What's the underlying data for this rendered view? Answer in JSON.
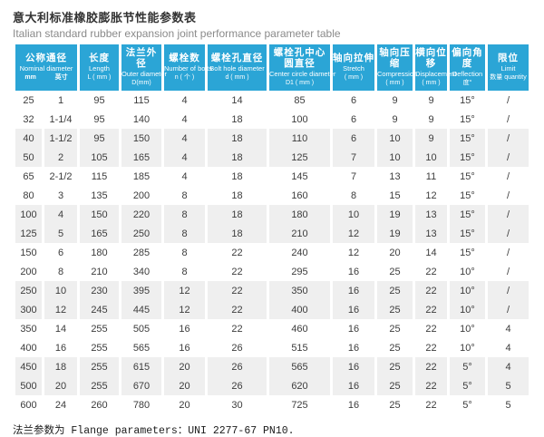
{
  "title_cn": "意大利标准橡胶膨胀节性能参数表",
  "title_en": "Italian standard rubber expansion joint performance parameter table",
  "colors": {
    "header_bg": "#2ba5d6",
    "stripe_bg": "#efefef",
    "header_text": "#ffffff"
  },
  "table": {
    "header": {
      "nominal": {
        "cn": "公称通径",
        "en": "Nominal diameter",
        "subs": [
          "mm",
          "英寸"
        ]
      },
      "columns": [
        {
          "cn": "长度",
          "en": "Length",
          "sub": "L ( mm )"
        },
        {
          "cn": "法兰外径",
          "en": "Outer diameter",
          "sub": "D(mm)"
        },
        {
          "cn": "螺栓数",
          "en": "Number of bolts",
          "sub": "n ( 个 )"
        },
        {
          "cn": "螺栓孔直径",
          "en": "Bolt hole diameter",
          "sub": "d ( mm )"
        },
        {
          "cn": "螺栓孔中心圆直径",
          "en": "Center circle diameter",
          "sub": "D1 ( mm )"
        },
        {
          "cn": "轴向拉伸",
          "en": "Stretch",
          "sub": "( mm )"
        },
        {
          "cn": "轴向压缩",
          "en": "Compression",
          "sub": "( mm )"
        },
        {
          "cn": "横向位移",
          "en": "Displacement",
          "sub": "( mm )"
        },
        {
          "cn": "偏向角度",
          "en": "Deflection",
          "sub": "度°"
        },
        {
          "cn": "限位",
          "en": "Limit",
          "sub": "数量 quantity"
        }
      ]
    },
    "rows": [
      [
        "25",
        "1",
        "95",
        "115",
        "4",
        "14",
        "85",
        "6",
        "9",
        "9",
        "15°",
        "/"
      ],
      [
        "32",
        "1-1/4",
        "95",
        "140",
        "4",
        "18",
        "100",
        "6",
        "9",
        "9",
        "15°",
        "/"
      ],
      [
        "40",
        "1-1/2",
        "95",
        "150",
        "4",
        "18",
        "110",
        "6",
        "10",
        "9",
        "15°",
        "/"
      ],
      [
        "50",
        "2",
        "105",
        "165",
        "4",
        "18",
        "125",
        "7",
        "10",
        "10",
        "15°",
        "/"
      ],
      [
        "65",
        "2-1/2",
        "115",
        "185",
        "4",
        "18",
        "145",
        "7",
        "13",
        "11",
        "15°",
        "/"
      ],
      [
        "80",
        "3",
        "135",
        "200",
        "8",
        "18",
        "160",
        "8",
        "15",
        "12",
        "15°",
        "/"
      ],
      [
        "100",
        "4",
        "150",
        "220",
        "8",
        "18",
        "180",
        "10",
        "19",
        "13",
        "15°",
        "/"
      ],
      [
        "125",
        "5",
        "165",
        "250",
        "8",
        "18",
        "210",
        "12",
        "19",
        "13",
        "15°",
        "/"
      ],
      [
        "150",
        "6",
        "180",
        "285",
        "8",
        "22",
        "240",
        "12",
        "20",
        "14",
        "15°",
        "/"
      ],
      [
        "200",
        "8",
        "210",
        "340",
        "8",
        "22",
        "295",
        "16",
        "25",
        "22",
        "10°",
        "/"
      ],
      [
        "250",
        "10",
        "230",
        "395",
        "12",
        "22",
        "350",
        "16",
        "25",
        "22",
        "10°",
        "/"
      ],
      [
        "300",
        "12",
        "245",
        "445",
        "12",
        "22",
        "400",
        "16",
        "25",
        "22",
        "10°",
        "/"
      ],
      [
        "350",
        "14",
        "255",
        "505",
        "16",
        "22",
        "460",
        "16",
        "25",
        "22",
        "10°",
        "4"
      ],
      [
        "400",
        "16",
        "255",
        "565",
        "16",
        "26",
        "515",
        "16",
        "25",
        "22",
        "10°",
        "4"
      ],
      [
        "450",
        "18",
        "255",
        "615",
        "20",
        "26",
        "565",
        "16",
        "25",
        "22",
        "5°",
        "4"
      ],
      [
        "500",
        "20",
        "255",
        "670",
        "20",
        "26",
        "620",
        "16",
        "25",
        "22",
        "5°",
        "5"
      ],
      [
        "600",
        "24",
        "260",
        "780",
        "20",
        "30",
        "725",
        "16",
        "25",
        "22",
        "5°",
        "5"
      ]
    ]
  },
  "footnote": "法兰参数为 Flange parameters：UNI 2277-67 PN10."
}
